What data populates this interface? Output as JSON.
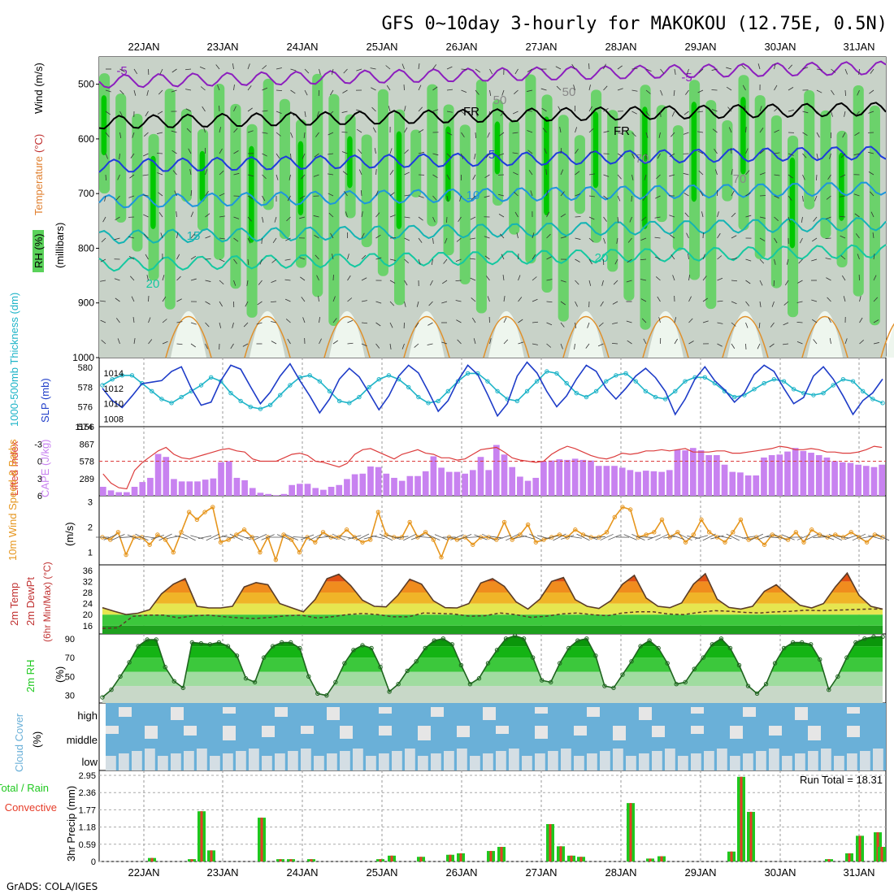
{
  "title": "GFS 0~10day 3-hourly for MAKOKOU (12.75E, 0.5N)",
  "credit": "GrADS: COLA/IGES",
  "dates": [
    "22JAN",
    "23JAN",
    "24JAN",
    "25JAN",
    "26JAN",
    "27JAN",
    "28JAN",
    "29JAN",
    "30JAN",
    "31JAN"
  ],
  "colors": {
    "rh_dark": "#00c800",
    "rh_mid": "#5ad25a",
    "rh_light": "#c8d2c8",
    "temp_purple": "#8c1ebe",
    "temp_black": "#000000",
    "temp_blue": "#1e3cdc",
    "temp_sky": "#1e96dc",
    "temp_teal": "#14b4b4",
    "temp_green": "#14c8a0",
    "slp": "#1e3cc8",
    "thick": "#1eb4c8",
    "li": "#dc3c3c",
    "cape": "#c882f0",
    "wind": "#e6961e",
    "cloud": "#6ab0d8",
    "cloud_gap": "#e6e6e6",
    "precip_total": "#1ec81e",
    "precip_conv": "#e63c28"
  },
  "panels": {
    "upper": {
      "ylabel_parts": [
        "RH (%)",
        "Temperature",
        "(°C)",
        "Wind (m/s)"
      ],
      "sub_ylabel": "(millibars)",
      "yticks": [
        "500",
        "600",
        "700",
        "800",
        "900",
        "1000"
      ],
      "contour_labels": [
        "-5",
        "-5",
        "FR",
        "FR",
        "5",
        "10",
        "15",
        "20",
        "20",
        "50",
        "50",
        "70",
        "70"
      ]
    },
    "slp": {
      "ylabel_left": "1000-500mb Thickness (dm)",
      "ylabel_right": "SLP (mb)",
      "ticks_left": [
        "580",
        "578",
        "576",
        "574"
      ],
      "ticks_right": [
        "1014",
        "1012",
        "1010",
        "1008"
      ]
    },
    "cape": {
      "ylabel_left": "Lifted Index",
      "ylabel_right": "CAPE (J/kg)",
      "ticks_left": [
        "-3",
        "0",
        "3",
        "6"
      ],
      "ticks_right": [
        "1156",
        "867",
        "578",
        "289"
      ]
    },
    "wind": {
      "ylabel_left": "10m Wind Speed & Barbs",
      "ylabel_right": "(m/s)",
      "ticks": [
        "3",
        "2",
        "1"
      ]
    },
    "temp": {
      "ylabel_left": "2m Temp",
      "ylabel_mid": "2m DewPt",
      "ylabel_right": "(6hr Min/Max) (°C)",
      "ticks": [
        "36",
        "32",
        "28",
        "24",
        "20",
        "16"
      ]
    },
    "rh": {
      "ylabel_left": "2m RH",
      "ylabel_right": "(%)",
      "ticks": [
        "90",
        "70",
        "50",
        "30"
      ]
    },
    "cloud": {
      "ylabel_left": "Cloud Cover",
      "ylabel_right": "(%)",
      "levels": [
        "high",
        "middle",
        "low"
      ]
    },
    "precip": {
      "ylabel_left": "Total / Rain",
      "ylabel_left2": "Convective",
      "ylabel_right": "3hr Precip (mm)",
      "ticks": [
        "2.95",
        "2.36",
        "1.77",
        "1.18",
        "0.59",
        "0"
      ],
      "run_total": "Run Total = 18.31"
    }
  },
  "chart_data": [
    {
      "type": "area",
      "name": "upper-air cross section",
      "ylim": [
        450,
        1000
      ],
      "yticks": [
        500,
        600,
        700,
        800,
        900,
        1000
      ],
      "isotherms_c": [
        -5,
        0,
        5,
        10,
        15,
        20
      ],
      "rh_levels_pct": [
        50,
        70
      ]
    },
    {
      "type": "line",
      "series": [
        {
          "values": [
            1012.0,
            1010.4,
            1009.5,
            1011.0,
            1012.6,
            1012.8,
            1013.0,
            1014.2,
            1014.8,
            1012.0,
            1009.8,
            1010.2,
            1013.0,
            1015.0,
            1014.5,
            1012.2,
            1010.0,
            1011.5,
            1013.6,
            1015.2,
            1013.0,
            1011.0,
            1008.8,
            1010.6,
            1013.2,
            1014.6,
            1013.5,
            1011.4,
            1009.2,
            1011.0,
            1013.6,
            1015.0,
            1014.0,
            1011.6,
            1009.0,
            1010.4,
            1013.0,
            1015.0,
            1013.8,
            1011.2,
            1008.4,
            1010.0,
            1013.6,
            1015.4,
            1014.0,
            1011.6,
            1009.6,
            1011.0,
            1013.2,
            1015.0,
            1014.2,
            1012.0,
            1010.6,
            1012.0,
            1013.6,
            1014.6,
            1013.4,
            1011.6,
            1008.6,
            1010.6,
            1013.2,
            1014.8,
            1013.0,
            1011.8,
            1010.2,
            1011.4,
            1013.8,
            1015.0,
            1014.2,
            1012.0,
            1010.0,
            1010.8,
            1013.6,
            1014.8,
            1013.2,
            1011.0,
            1008.6,
            1010.4,
            1011.4,
            1013.2
          ]
        },
        {
          "values": [
            578.2,
            578.8,
            579.2,
            579.2,
            578.4,
            577.6,
            576.8,
            576.4,
            577.0,
            577.6,
            578.2,
            579.0,
            578.6,
            577.4,
            576.6,
            576.0,
            575.8,
            576.2,
            577.2,
            578.2,
            579.0,
            579.2,
            578.6,
            577.6,
            576.6,
            576.4,
            577.0,
            578.0,
            578.8,
            579.2,
            578.8,
            578.0,
            577.0,
            576.4,
            576.6,
            577.6,
            578.6,
            579.4,
            579.4,
            578.6,
            577.6,
            576.8,
            576.6,
            577.6,
            578.6,
            579.6,
            579.4,
            578.4,
            577.4,
            577.0,
            577.6,
            578.6,
            579.2,
            579.4,
            578.6,
            577.6,
            577.0,
            576.8,
            577.6,
            578.6,
            579.0,
            579.0,
            578.4,
            577.6,
            577.0,
            577.2,
            577.8,
            578.4,
            578.8,
            578.6,
            577.8,
            577.4,
            577.2,
            577.4,
            578.2,
            578.8,
            578.6,
            577.6,
            576.8,
            576.4
          ]
        }
      ]
    },
    {
      "type": "bar",
      "series": [
        {
          "values": [
            150,
            90,
            60,
            60,
            150,
            230,
            300,
            700,
            650,
            280,
            240,
            240,
            240,
            270,
            290,
            560,
            580,
            300,
            260,
            130,
            50,
            30,
            10,
            30,
            180,
            200,
            200,
            130,
            100,
            150,
            180,
            280,
            360,
            370,
            490,
            480,
            370,
            300,
            250,
            330,
            330,
            410,
            660,
            470,
            400,
            400,
            370,
            430,
            650,
            430,
            850,
            690,
            480,
            320,
            250,
            300,
            570,
            590,
            610,
            600,
            620,
            600,
            590,
            500,
            500,
            500,
            470,
            430,
            400,
            420,
            410,
            400,
            430,
            770,
            760,
            800,
            760,
            680,
            680,
            520,
            400,
            390,
            340,
            340,
            640,
            680,
            690,
            740,
            800,
            750,
            720,
            680,
            640,
            580,
            560,
            550,
            520,
            500,
            480,
            520
          ]
        },
        {
          "values": [
            2.2,
            3.8,
            4.6,
            4.8,
            1.6,
            0.2,
            -0.8,
            -1.8,
            -2.4,
            -1.2,
            -0.6,
            -0.4,
            -0.8,
            -1.2,
            -1.6,
            -2.0,
            -2.2,
            -1.8,
            -1.6,
            -0.4,
            0.0,
            0.0,
            0.0,
            -0.6,
            -1.2,
            -1.4,
            -1.0,
            0.0,
            0.2,
            0.6,
            1.0,
            0.4,
            -1.2,
            -2.0,
            -2.2,
            -1.6,
            -1.0,
            -0.4,
            -1.2,
            -1.6,
            -2.0,
            -1.4,
            -1.2,
            -0.6,
            -0.6,
            -0.2,
            -0.4,
            -1.2,
            -2.0,
            -2.2,
            -2.4,
            -1.6,
            -0.6,
            -0.2,
            0.0,
            0.2,
            0.0,
            -1.2,
            -2.0,
            -2.6,
            -2.2,
            -1.6,
            -1.0,
            -0.6,
            -0.4,
            -0.8,
            -1.4,
            -1.2,
            -1.4,
            -1.8,
            -1.8,
            -2.0,
            -1.8,
            -2.0,
            -2.2,
            -1.6,
            -1.6,
            -1.6,
            -1.8,
            -1.8,
            -1.4,
            -1.4,
            -1.6,
            -1.8,
            -2.0,
            -2.2,
            -2.6,
            -2.4,
            -2.0,
            -2.0,
            -2.2,
            -2.0,
            -1.6,
            -1.6,
            -1.4,
            -1.4,
            -1.6,
            -2.0,
            -2.6,
            -2.4
          ]
        }
      ]
    },
    {
      "type": "line",
      "series": [
        {
          "values": [
            1.6,
            1.5,
            1.8,
            0.9,
            1.6,
            1.6,
            1.3,
            1.7,
            1.5,
            1.0,
            1.8,
            2.6,
            2.3,
            2.6,
            2.8,
            1.4,
            1.5,
            1.7,
            1.9,
            1.6,
            1.0,
            1.6,
            0.7,
            1.7,
            1.5,
            1.0,
            1.6,
            1.4,
            1.8,
            1.6,
            1.6,
            1.9,
            1.6,
            1.4,
            1.5,
            2.6,
            1.7,
            1.6,
            1.6,
            2.2,
            1.6,
            1.8,
            1.5,
            0.8,
            1.6,
            1.5,
            1.6,
            1.3,
            1.6,
            1.6,
            1.5,
            2.2,
            1.5,
            1.7,
            2.1,
            1.4,
            1.5,
            1.6,
            1.7,
            1.6,
            1.9,
            1.7,
            1.6,
            1.6,
            1.8,
            2.4,
            2.8,
            2.7,
            1.6,
            1.7,
            1.8,
            2.3,
            1.6,
            1.8,
            1.4,
            1.7,
            2.3,
            1.8,
            1.6,
            1.4,
            1.8,
            2.3,
            1.5,
            1.6,
            1.3,
            1.7,
            1.6,
            1.5,
            1.8,
            1.4,
            1.9,
            1.7,
            1.6,
            1.7,
            1.6,
            1.8,
            1.6,
            1.4,
            1.7,
            1.6
          ]
        }
      ]
    },
    {
      "type": "area",
      "series": [
        {
          "values": [
            22.5,
            21.2,
            20.0,
            20.5,
            21.8,
            27.5,
            31.0,
            33.0,
            23.0,
            22.4,
            22.4,
            23.0,
            30.0,
            31.6,
            30.8,
            24.0,
            22.5,
            21.0,
            25.5,
            33.0,
            34.6,
            30.5,
            25.2,
            23.0,
            22.8,
            27.0,
            32.8,
            31.0,
            25.0,
            22.5,
            22.4,
            24.0,
            31.4,
            33.0,
            30.2,
            24.6,
            22.0,
            25.6,
            32.0,
            33.4,
            25.4,
            23.0,
            22.2,
            25.0,
            31.0,
            34.2,
            26.0,
            23.0,
            22.5,
            24.2,
            31.0,
            34.8,
            25.6,
            22.6,
            22.0,
            23.0,
            28.4,
            30.8,
            27.0,
            23.4,
            22.4,
            24.0,
            30.0,
            35.0,
            27.0,
            23.0,
            22.0
          ]
        },
        {
          "values": [
            15.0,
            15.2,
            19.4,
            19.8,
            19.8,
            18.8,
            19.6,
            19.8,
            19.2,
            18.8,
            18.6,
            19.0,
            19.6,
            19.8,
            18.8,
            19.2,
            20.0,
            20.4,
            20.0,
            19.2,
            19.2,
            20.6,
            20.4,
            20.2,
            19.4,
            19.6,
            20.6,
            20.0,
            19.0,
            19.4,
            20.2,
            20.6,
            20.0,
            19.6,
            20.6,
            21.0,
            21.0,
            20.2,
            20.0,
            20.8,
            21.4,
            21.2,
            20.8,
            20.6,
            21.0,
            21.2,
            21.6,
            21.4,
            21.6,
            21.8,
            22.0,
            22.0
          ]
        }
      ]
    },
    {
      "type": "area",
      "series": [
        {
          "values": [
            28,
            36,
            50,
            65,
            82,
            89,
            89,
            60,
            45,
            38,
            86,
            85,
            84,
            86,
            82,
            72,
            48,
            44,
            70,
            82,
            86,
            86,
            80,
            50,
            32,
            30,
            44,
            64,
            78,
            83,
            80,
            60,
            34,
            42,
            56,
            66,
            80,
            88,
            90,
            84,
            62,
            42,
            48,
            64,
            78,
            90,
            93,
            90,
            70,
            46,
            44,
            64,
            80,
            88,
            90,
            72,
            40,
            38,
            52,
            66,
            82,
            88,
            80,
            64,
            42,
            44,
            58,
            70,
            84,
            90,
            80,
            62,
            40,
            32,
            42,
            64,
            80,
            86,
            86,
            84,
            68,
            36,
            50,
            70,
            86,
            90,
            92,
            92
          ]
        }
      ]
    },
    {
      "type": "bar",
      "series": [
        {
          "values": [
            0.12,
            0.08,
            1.72,
            0.38,
            1.5,
            0.08,
            0.08,
            0.08,
            0.08,
            0.2,
            0.16,
            0.23,
            0.28,
            0.36,
            0.5,
            1.28,
            0.52,
            0.2,
            0.16,
            2.0,
            0.1,
            0.18,
            0.34,
            2.9,
            1.7,
            0.08,
            0.28,
            0.88,
            1.0,
            0.5
          ]
        }
      ]
    }
  ]
}
